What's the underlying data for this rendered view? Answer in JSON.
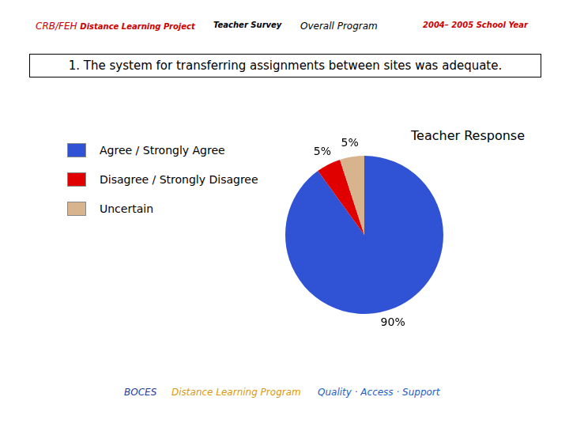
{
  "header": {
    "project": "CRB/FEH",
    "project_sub": "Distance Learning Project",
    "survey": "Teacher Survey",
    "scope": "Overall Program",
    "year": "2004– 2005 School Year"
  },
  "question": "1. The system for transferring assignments between sites was adequate.",
  "chart_data": {
    "type": "pie",
    "title": "Teacher Response",
    "categories": [
      "Agree / Strongly Agree",
      "Disagree / Strongly Disagree",
      "Uncertain"
    ],
    "values": [
      90,
      5,
      5
    ],
    "value_labels": [
      "90%",
      "5%",
      "5%"
    ],
    "colors": [
      "#3052d4",
      "#e00000",
      "#d8b48e"
    ],
    "data_labels": true,
    "legend": "left"
  },
  "footer": {
    "org": "BOCES",
    "program": "Distance Learning Program",
    "motto": "Quality · Access · Support"
  }
}
